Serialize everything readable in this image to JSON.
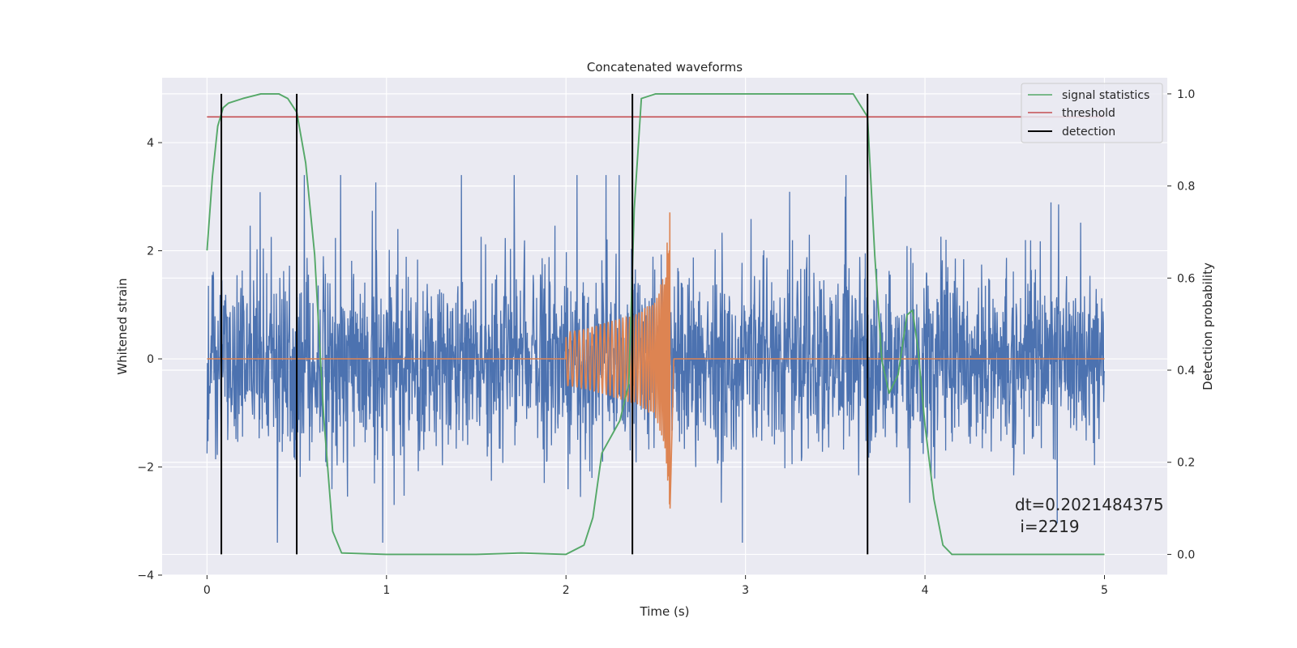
{
  "chart_data": {
    "type": "line",
    "title": "Concatenated waveforms",
    "xlabel": "Time (s)",
    "ylabel": "Whitened strain",
    "y2label": "Detection probability",
    "xlim": [
      -0.25,
      5.35
    ],
    "ylim": [
      -4.0,
      5.2
    ],
    "y2lim": [
      -0.045,
      1.035
    ],
    "x_ticks": [
      "0",
      "1",
      "2",
      "3",
      "4",
      "5"
    ],
    "y_ticks": [
      "−4",
      "−2",
      "0",
      "2",
      "4"
    ],
    "y2_ticks": [
      "0.0",
      "0.2",
      "0.4",
      "0.6",
      "0.8",
      "1.0"
    ],
    "grid": true,
    "legend_position": "top-right",
    "colors": {
      "strain": "#4c72b0",
      "template": "#dd8452",
      "signal_statistics": "#55a868",
      "threshold": "#c44e52",
      "detection": "#000000",
      "axes_bg": "#eaeaf2",
      "grid": "#ffffff"
    },
    "series": [
      {
        "name": "",
        "role": "whitened strain noise (plotted as dense random trace)",
        "x_range": [
          0,
          5
        ],
        "typical_amplitude": 1.3,
        "peak_amplitude": 3.4,
        "axis": "left"
      },
      {
        "name": "",
        "role": "injected chirp signal",
        "x": [
          2.0,
          2.1,
          2.2,
          2.3,
          2.4,
          2.5,
          2.55,
          2.58,
          2.6
        ],
        "amplitude": [
          0.5,
          0.55,
          0.65,
          0.75,
          0.85,
          1.1,
          1.6,
          2.9,
          0.05
        ],
        "axis": "left"
      },
      {
        "name": "signal statistics",
        "axis": "right",
        "x": [
          0.0,
          0.03,
          0.06,
          0.09,
          0.12,
          0.2,
          0.3,
          0.4,
          0.45,
          0.5,
          0.55,
          0.6,
          0.65,
          0.7,
          0.75,
          1.0,
          1.5,
          1.75,
          2.0,
          2.1,
          2.15,
          2.2,
          2.3,
          2.35,
          2.38,
          2.42,
          2.5,
          3.0,
          3.6,
          3.68,
          3.72,
          3.76,
          3.8,
          3.85,
          3.9,
          3.93,
          3.96,
          4.0,
          4.05,
          4.1,
          4.15,
          4.2,
          4.5,
          5.0
        ],
        "y": [
          0.66,
          0.82,
          0.93,
          0.97,
          0.98,
          0.99,
          1.0,
          1.0,
          0.99,
          0.96,
          0.85,
          0.65,
          0.3,
          0.05,
          0.003,
          0.0,
          0.0,
          0.003,
          0.0,
          0.02,
          0.08,
          0.22,
          0.29,
          0.37,
          0.75,
          0.99,
          1.0,
          1.0,
          1.0,
          0.95,
          0.65,
          0.42,
          0.35,
          0.39,
          0.52,
          0.53,
          0.45,
          0.28,
          0.12,
          0.02,
          0.0,
          0.0,
          0.0,
          0.0
        ]
      },
      {
        "name": "threshold",
        "axis": "right",
        "x": [
          0,
          5
        ],
        "y": [
          0.95,
          0.95
        ]
      },
      {
        "name": "detection",
        "axis": "right",
        "x": [
          0.08,
          0.5,
          2.37,
          3.68
        ],
        "y_range": [
          0.0,
          1.0
        ]
      }
    ],
    "annotation": [
      "dt=0.2021484375",
      " i=2219"
    ]
  }
}
